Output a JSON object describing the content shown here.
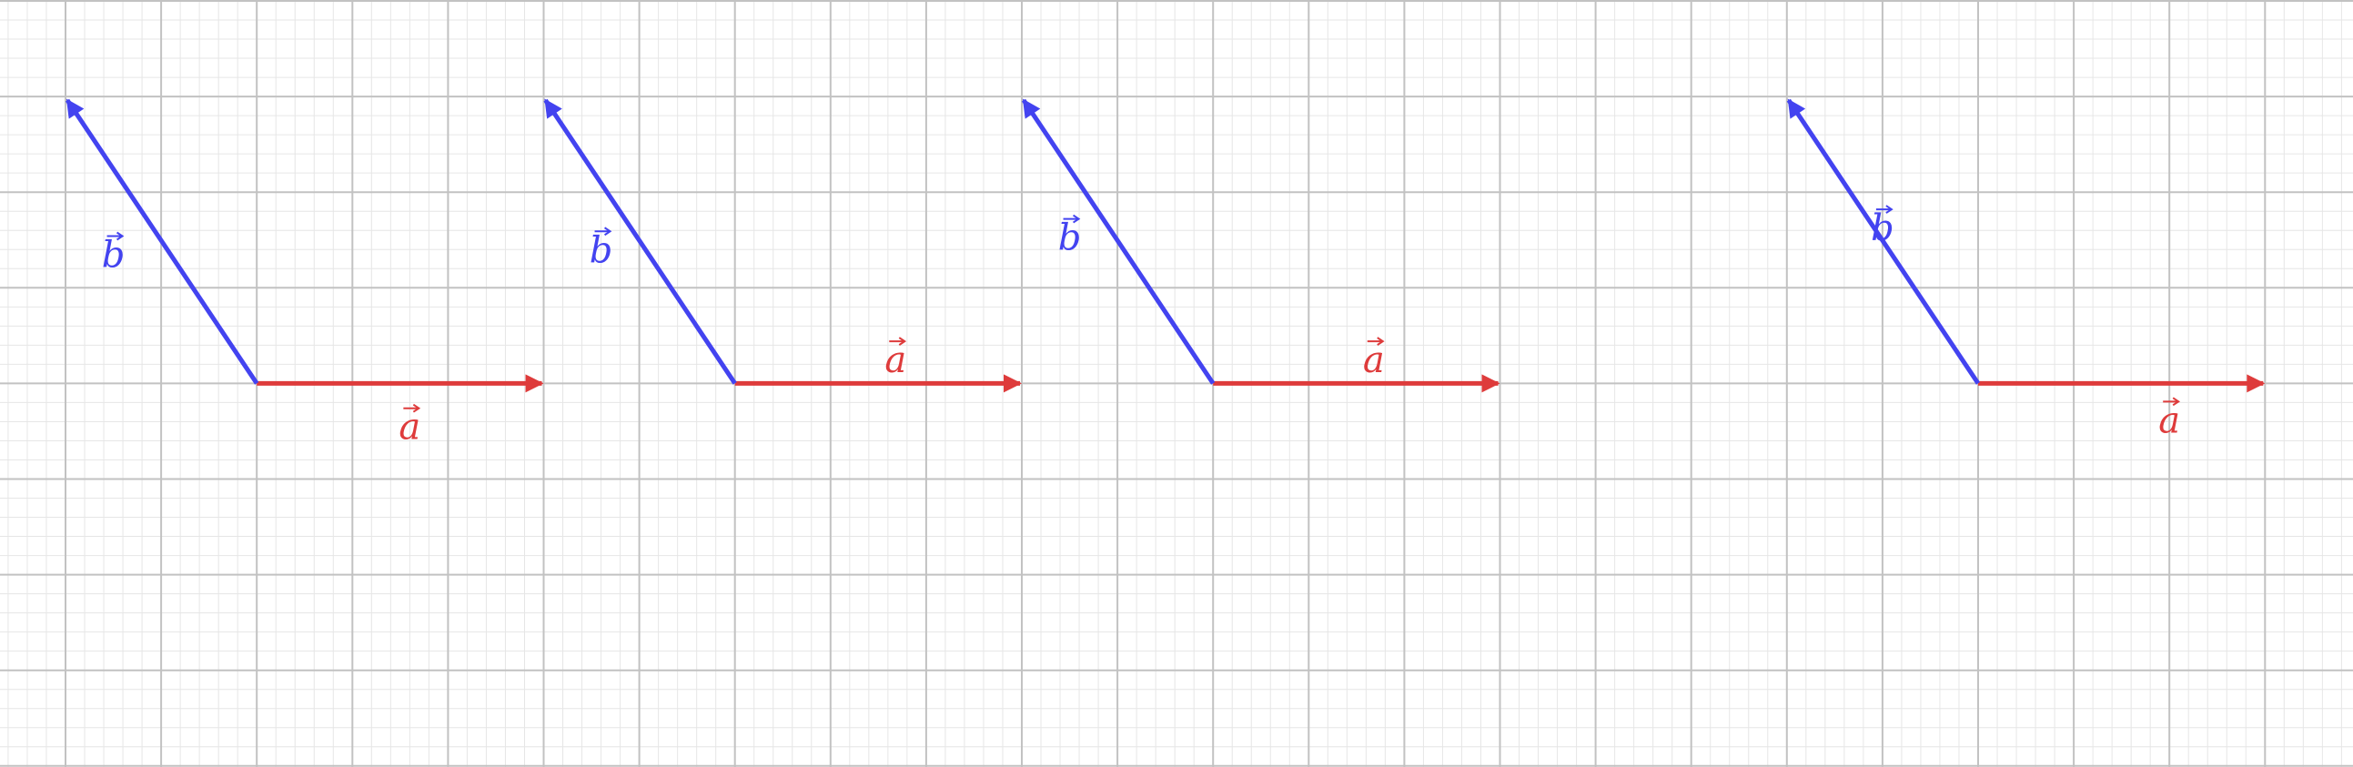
{
  "colors": {
    "background": "#ffffff",
    "grid_minor": "#e6e6e6",
    "grid_major": "#c2c2c2",
    "vector_a": "#de3b3b",
    "vector_b": "#4343f0"
  },
  "vector_names": {
    "a": "a",
    "b": "b"
  },
  "panels": [
    {
      "label_a": "a",
      "label_b": "b"
    },
    {
      "label_a": "a",
      "label_b": "b"
    },
    {
      "label_a": "a",
      "label_b": "b"
    },
    {
      "label_a": "a",
      "label_b": "b"
    }
  ]
}
